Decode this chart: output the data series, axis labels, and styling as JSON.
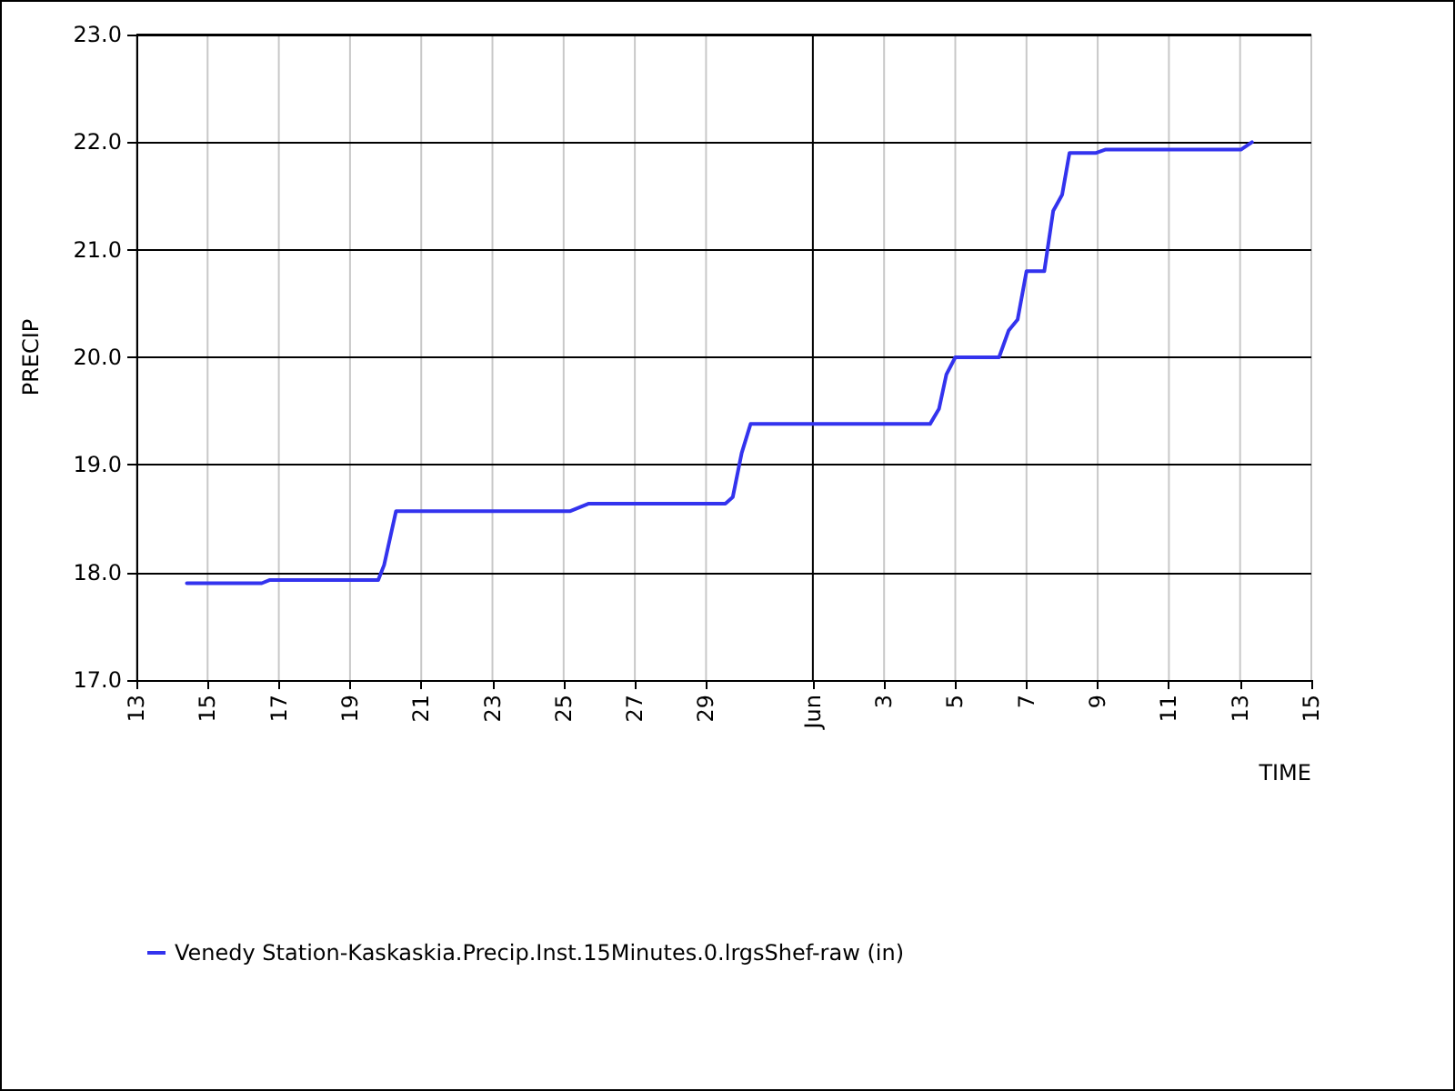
{
  "chart_data": {
    "type": "line",
    "xlabel": "TIME",
    "ylabel": "PRECIP",
    "x": [
      "--05-14T10:00",
      "--05-16T12:30",
      "--05-16T18:00",
      "--05-19T19:00",
      "--05-19T23:00",
      "--05-20T07:00",
      "--05-25T04:30",
      "--05-25T17:00",
      "--05-29T13:00",
      "--05-29T18:00",
      "--05-30T00:00",
      "--05-30T06:00",
      "--06-04T07:00",
      "--06-04T13:00",
      "--06-04T18:00",
      "--06-05T00:00",
      "--06-06T05:30",
      "--06-06T12:00",
      "--06-06T18:00",
      "--06-07T00:00",
      "--06-07T12:00",
      "--06-07T18:00",
      "--06-08T00:00",
      "--06-08T05:00",
      "--06-08T23:00",
      "--06-09T05:00",
      "--06-13T00:30",
      "--06-13T08:00"
    ],
    "series": [
      {
        "name": "Venedy Station-Kaskaskia.Precip.Inst.15Minutes.0.lrgsShef-raw (in)",
        "color": "#3333ee",
        "values": [
          17.9,
          17.9,
          17.93,
          17.93,
          18.07,
          18.57,
          18.57,
          18.64,
          18.64,
          18.7,
          19.11,
          19.38,
          19.38,
          19.52,
          19.84,
          20.0,
          20.0,
          20.25,
          20.35,
          20.8,
          20.8,
          21.36,
          21.51,
          21.9,
          21.9,
          21.93,
          21.93,
          22.0
        ]
      }
    ],
    "xlim": [
      "--05-13",
      "--06-15"
    ],
    "xticks": [
      {
        "value": "--05-13",
        "label": "13"
      },
      {
        "value": "--05-15",
        "label": "15"
      },
      {
        "value": "--05-17",
        "label": "17"
      },
      {
        "value": "--05-19",
        "label": "19"
      },
      {
        "value": "--05-21",
        "label": "21"
      },
      {
        "value": "--05-23",
        "label": "23"
      },
      {
        "value": "--05-25",
        "label": "25"
      },
      {
        "value": "--05-27",
        "label": "27"
      },
      {
        "value": "--05-29",
        "label": "29"
      },
      {
        "value": "--06-01",
        "label": "Jun"
      },
      {
        "value": "--06-03",
        "label": "3"
      },
      {
        "value": "--06-05",
        "label": "5"
      },
      {
        "value": "--06-07",
        "label": "7"
      },
      {
        "value": "--06-09",
        "label": "9"
      },
      {
        "value": "--06-11",
        "label": "11"
      },
      {
        "value": "--06-13",
        "label": "13"
      },
      {
        "value": "--06-15",
        "label": "15"
      }
    ],
    "ylim": [
      17,
      23
    ],
    "yticks": [
      {
        "value": 17,
        "label": "17.0"
      },
      {
        "value": 18,
        "label": "18.0"
      },
      {
        "value": 19,
        "label": "19.0"
      },
      {
        "value": 20,
        "label": "20.0"
      },
      {
        "value": 21,
        "label": "21.0"
      },
      {
        "value": 22,
        "label": "22.0"
      },
      {
        "value": 23,
        "label": "23.0"
      }
    ],
    "grid": true,
    "legend": "bottom left",
    "marker": "none",
    "line_style": "solid"
  }
}
